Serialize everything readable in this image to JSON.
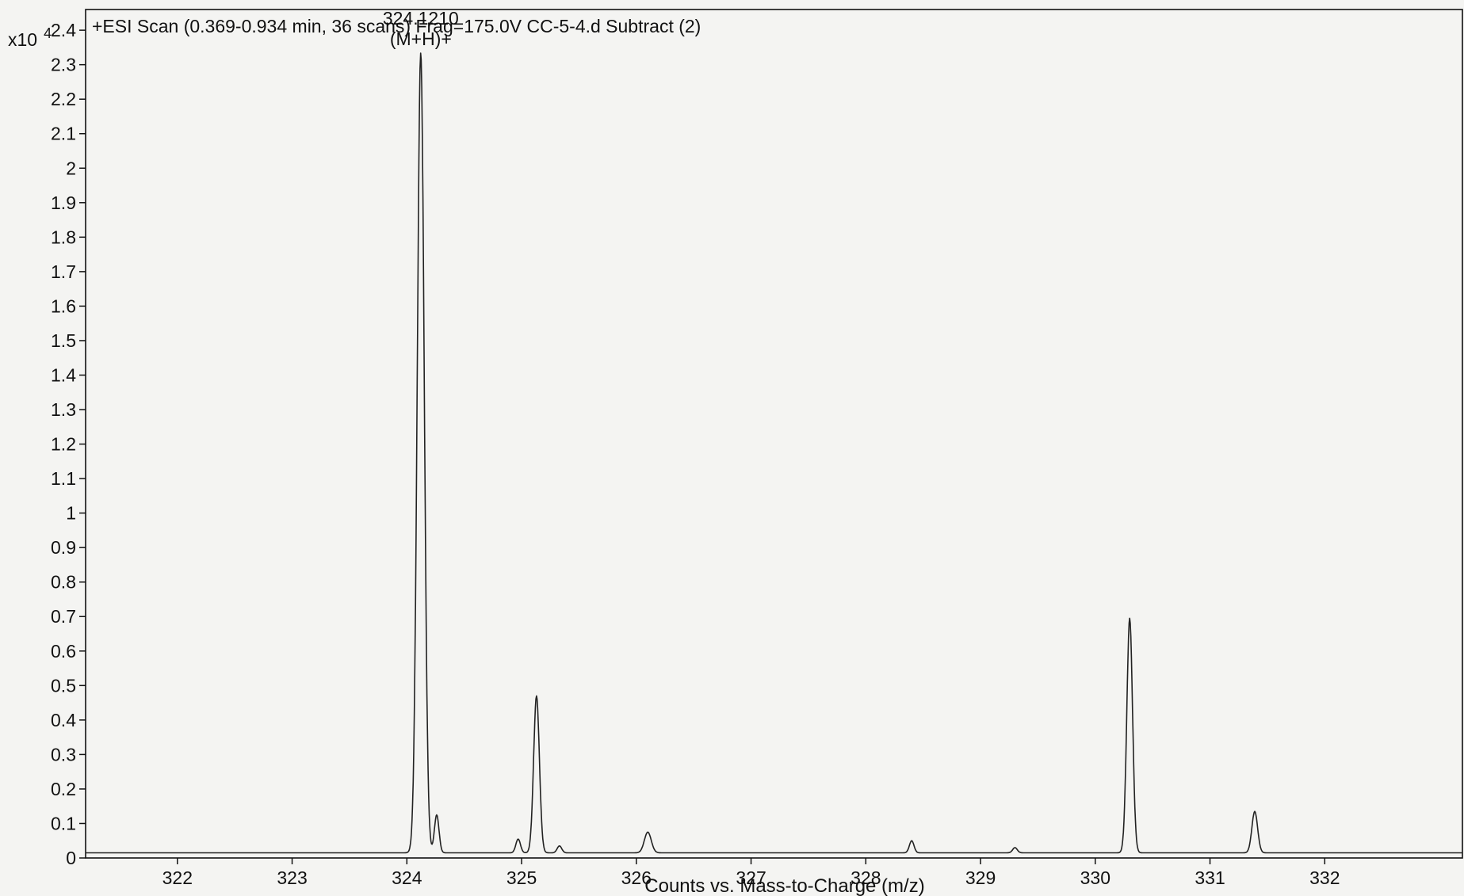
{
  "chart_data": {
    "type": "line",
    "title": "+ESI Scan (0.369-0.934 min, 36 scans) Frag=175.0V CC-5-4.d  Subtract (2)",
    "xlabel": "Counts vs. Mass-to-Charge (m/z)",
    "ylabel": "",
    "y_multiplier": "x10",
    "y_exponent": "4",
    "xlim": [
      321.2,
      333.2
    ],
    "ylim": [
      0,
      2.46
    ],
    "x_ticks": [
      "322",
      "323",
      "324",
      "325",
      "326",
      "327",
      "328",
      "329",
      "330",
      "331",
      "332"
    ],
    "y_ticks": [
      "0",
      "0.1",
      "0.2",
      "0.3",
      "0.4",
      "0.5",
      "0.6",
      "0.7",
      "0.8",
      "0.9",
      "1",
      "1.1",
      "1.2",
      "1.3",
      "1.4",
      "1.5",
      "1.6",
      "1.7",
      "1.8",
      "1.9",
      "2",
      "2.1",
      "2.2",
      "2.3",
      "2.4"
    ],
    "grid": false,
    "legend": "none",
    "baseline": 0.015,
    "peaks": [
      {
        "mz": 324.121,
        "height": 2.32,
        "width": 0.03
      },
      {
        "mz": 324.26,
        "height": 0.11,
        "width": 0.02
      },
      {
        "mz": 324.97,
        "height": 0.04,
        "width": 0.02
      },
      {
        "mz": 325.13,
        "height": 0.455,
        "width": 0.025
      },
      {
        "mz": 325.33,
        "height": 0.02,
        "width": 0.02
      },
      {
        "mz": 326.1,
        "height": 0.06,
        "width": 0.03
      },
      {
        "mz": 328.4,
        "height": 0.035,
        "width": 0.02
      },
      {
        "mz": 329.3,
        "height": 0.015,
        "width": 0.02
      },
      {
        "mz": 330.3,
        "height": 0.68,
        "width": 0.025
      },
      {
        "mz": 331.39,
        "height": 0.12,
        "width": 0.025
      }
    ],
    "annotations": [
      {
        "x": 324.121,
        "y": 2.32,
        "lines": [
          "324.1210",
          "(M+H)+"
        ]
      }
    ]
  },
  "colors": {
    "line": "#222222",
    "axis": "#111111",
    "background": "#f4f4f2"
  }
}
